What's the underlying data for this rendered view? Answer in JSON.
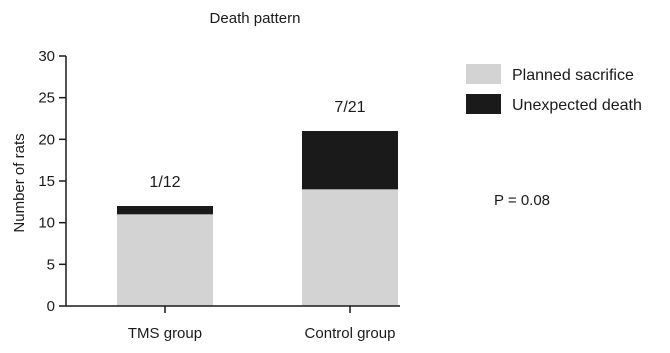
{
  "chart_data": {
    "type": "bar",
    "stacked": true,
    "title": "Death pattern",
    "xlabel": "",
    "ylabel": "Number of rats",
    "ylim": [
      0,
      30
    ],
    "yticks": [
      0,
      5,
      10,
      15,
      20,
      25,
      30
    ],
    "categories": [
      "TMS group",
      "Control group"
    ],
    "series": [
      {
        "name": "Planned sacrifice",
        "values": [
          11,
          14
        ],
        "color": "#d3d3d3"
      },
      {
        "name": "Unexpected death",
        "values": [
          1,
          7
        ],
        "color": "#1a1a1a"
      }
    ],
    "bar_labels": [
      "1/12",
      "7/21"
    ],
    "annotation": "P = 0.08",
    "legend_position": "right"
  }
}
